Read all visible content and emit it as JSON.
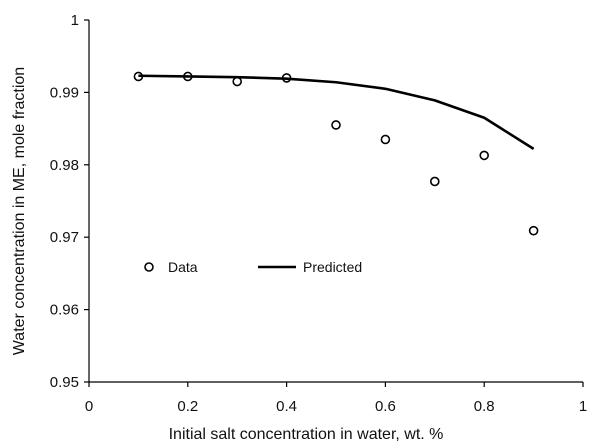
{
  "chart_data": {
    "type": "scatter",
    "title": "",
    "xlabel": "Initial salt concentration in water, wt. %",
    "ylabel": "Water concentration in ME, mole fraction",
    "xlim": [
      0,
      1
    ],
    "ylim": [
      0.95,
      1
    ],
    "xticks": [
      "0",
      "0.2",
      "0.4",
      "0.6",
      "0.8",
      "1"
    ],
    "yticks": [
      "0.95",
      "0.96",
      "0.97",
      "0.98",
      "0.99",
      "1"
    ],
    "grid": false,
    "legend_position": "middle-left",
    "series": [
      {
        "name": "Data",
        "kind": "markers",
        "marker": "open-circle",
        "color": "#000000",
        "x": [
          0.1,
          0.2,
          0.3,
          0.4,
          0.5,
          0.6,
          0.7,
          0.8,
          0.9
        ],
        "y": [
          0.9922,
          0.9922,
          0.9915,
          0.992,
          0.9855,
          0.9835,
          0.9777,
          0.9813,
          0.9709
        ]
      },
      {
        "name": "Predicted",
        "kind": "line",
        "color": "#000000",
        "x": [
          0.1,
          0.2,
          0.3,
          0.4,
          0.5,
          0.6,
          0.7,
          0.8,
          0.9
        ],
        "y": [
          0.9923,
          0.9922,
          0.9921,
          0.9919,
          0.9914,
          0.9905,
          0.9889,
          0.9865,
          0.9822
        ]
      }
    ]
  }
}
